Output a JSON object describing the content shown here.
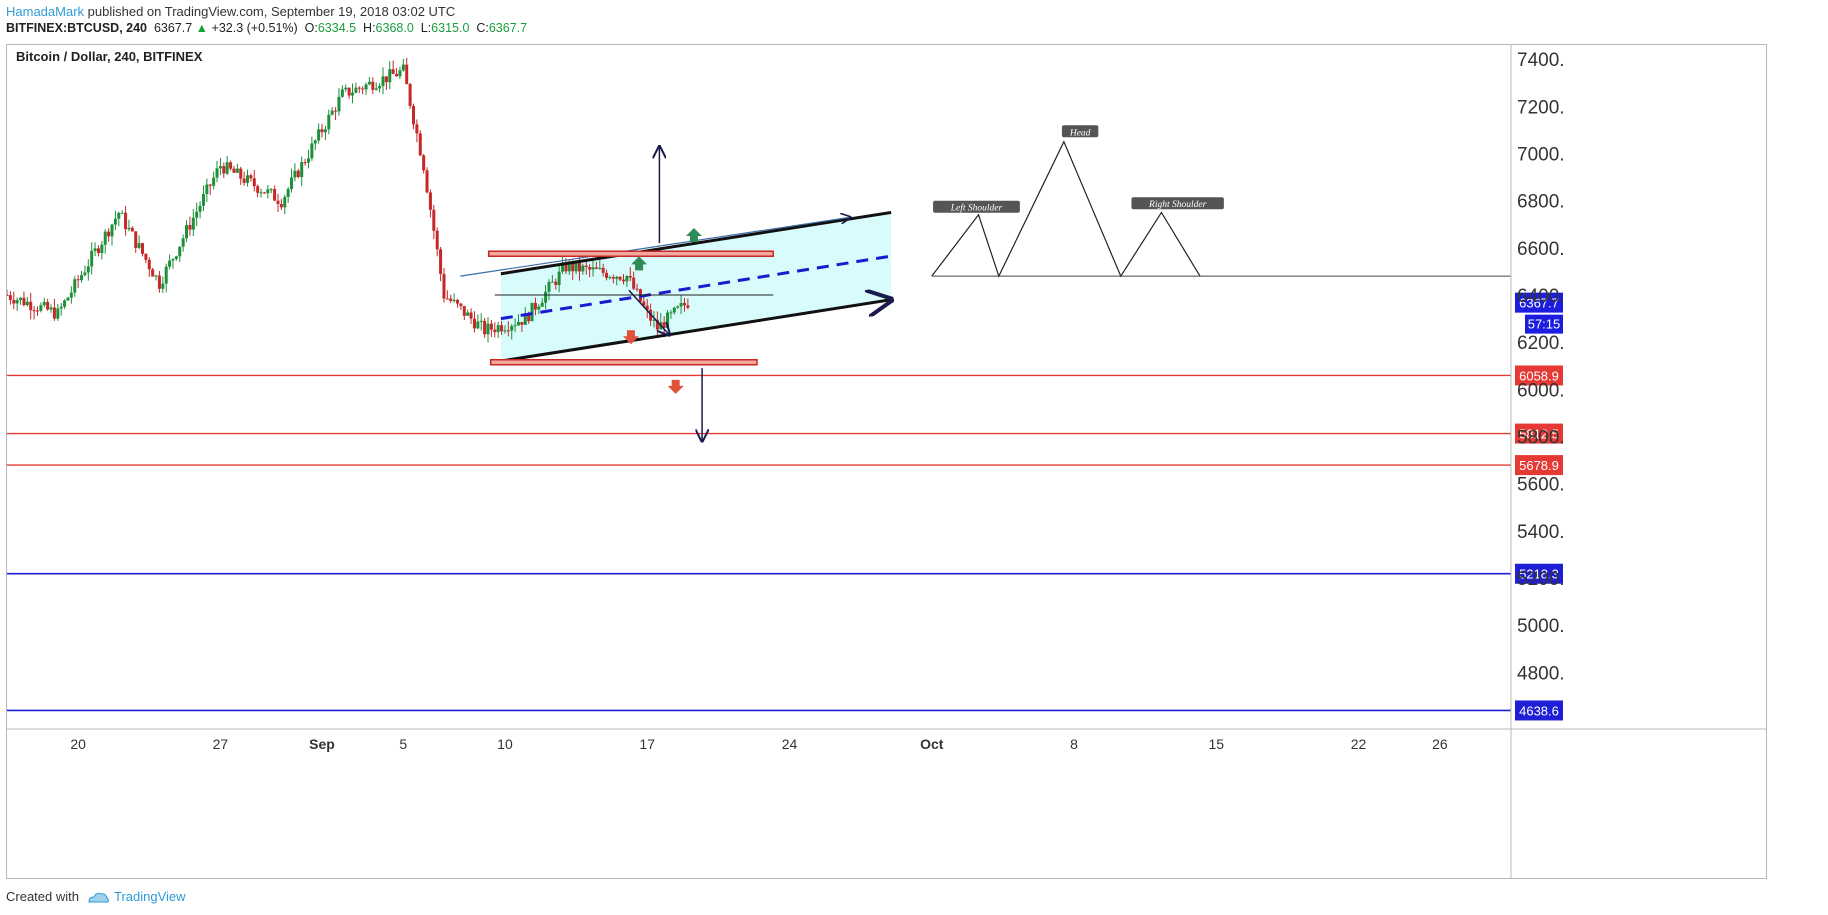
{
  "header": {
    "author": "HamadaMark",
    "published_text": "published on TradingView.com, September 19, 2018 03:02 UTC",
    "symbol_text": "BITFINEX:BTCUSD, 240",
    "last_price": "6367.7",
    "change_text": "+32.3 (+0.51%)",
    "open_label": "O:",
    "open": "6334.5",
    "high_label": "H:",
    "high": "6368.0",
    "low_label": "L:",
    "low": "6315.0",
    "close_label": "C:",
    "close": "6367.7"
  },
  "footer": {
    "created_with": "Created with",
    "brand": "TradingView"
  },
  "colors": {
    "up": "#1e8f3a",
    "down": "#c62828",
    "channel_fill": "#d8fbfb",
    "resistance": "#e53935",
    "support_blue": "#1f1fd6",
    "arrow": "#1a1a4e",
    "green_marker": "#2e8b57",
    "red_marker": "#e0513a"
  },
  "chart_data": {
    "type": "candlestick",
    "title": "Bitcoin / Dollar, 240, BITFINEX",
    "x_ticks": [
      {
        "label": "20",
        "day": 20
      },
      {
        "label": "27",
        "day": 27
      },
      {
        "label": "Sep",
        "day": 32,
        "bold": true
      },
      {
        "label": "5",
        "day": 36
      },
      {
        "label": "10",
        "day": 41
      },
      {
        "label": "17",
        "day": 48
      },
      {
        "label": "24",
        "day": 55
      },
      {
        "label": "Oct",
        "day": 62,
        "bold": true
      },
      {
        "label": "8",
        "day": 69
      },
      {
        "label": "15",
        "day": 76
      },
      {
        "label": "22",
        "day": 83
      },
      {
        "label": "26",
        "day": 87
      }
    ],
    "y_ticks": [
      7400,
      7200,
      7000,
      6800,
      6600,
      6400,
      6200,
      6000,
      5800,
      5600,
      5400,
      5200,
      5000,
      4800
    ],
    "y_range": [
      4560,
      7460
    ],
    "x_range_days": [
      16.5,
      90.5
    ],
    "price_path_days": [
      16.5,
      19,
      22,
      24,
      27,
      30,
      33,
      36,
      37,
      38,
      40,
      42,
      44,
      47,
      48,
      48.5,
      50
    ],
    "price_path_values": [
      6400,
      6320,
      6750,
      6450,
      6950,
      6800,
      7250,
      7350,
      6950,
      6400,
      6250,
      6300,
      6520,
      6480,
      6320,
      6260,
      6370
    ],
    "current_price": {
      "value": 6367.7,
      "label": "6367.7",
      "countdown": "57:15"
    },
    "horizontal_levels": [
      {
        "value": 6058.9,
        "label": "6058.9",
        "kind": "resistance"
      },
      {
        "value": 5812.5,
        "label": "5812.5",
        "kind": "resistance"
      },
      {
        "value": 5678.9,
        "label": "5678.9",
        "kind": "resistance"
      },
      {
        "value": 5218.3,
        "label": "5218.3",
        "kind": "support"
      },
      {
        "value": 4638.6,
        "label": "4638.6",
        "kind": "support"
      }
    ],
    "channel": {
      "start_day": 40.8,
      "end_day": 60,
      "upper": [
        6490,
        6750
      ],
      "lower": [
        6120,
        6380
      ],
      "mid": [
        6300,
        6565
      ]
    },
    "boxes": [
      {
        "day1": 40.2,
        "day2": 54.2,
        "value": 6575
      },
      {
        "day1": 40.3,
        "day2": 53.4,
        "value": 6115
      }
    ],
    "thin_level": {
      "day1": 40.5,
      "day2": 54.2,
      "value": 6400
    },
    "annotations": [
      {
        "text": "Left Shoulder",
        "day": 64.2,
        "value": 6770
      },
      {
        "text": "Head",
        "day": 69.3,
        "value": 7090
      },
      {
        "text": "Right Shoulder",
        "day": 74.1,
        "value": 6785
      }
    ],
    "hs_pattern": {
      "days": [
        62,
        64.3,
        65.3,
        68.5,
        71.3,
        73.3,
        75.2
      ],
      "values": [
        6480,
        6740,
        6480,
        7050,
        6480,
        6750,
        6480
      ],
      "neckline_value": 6480,
      "neckline_end_day": 90.5
    }
  }
}
